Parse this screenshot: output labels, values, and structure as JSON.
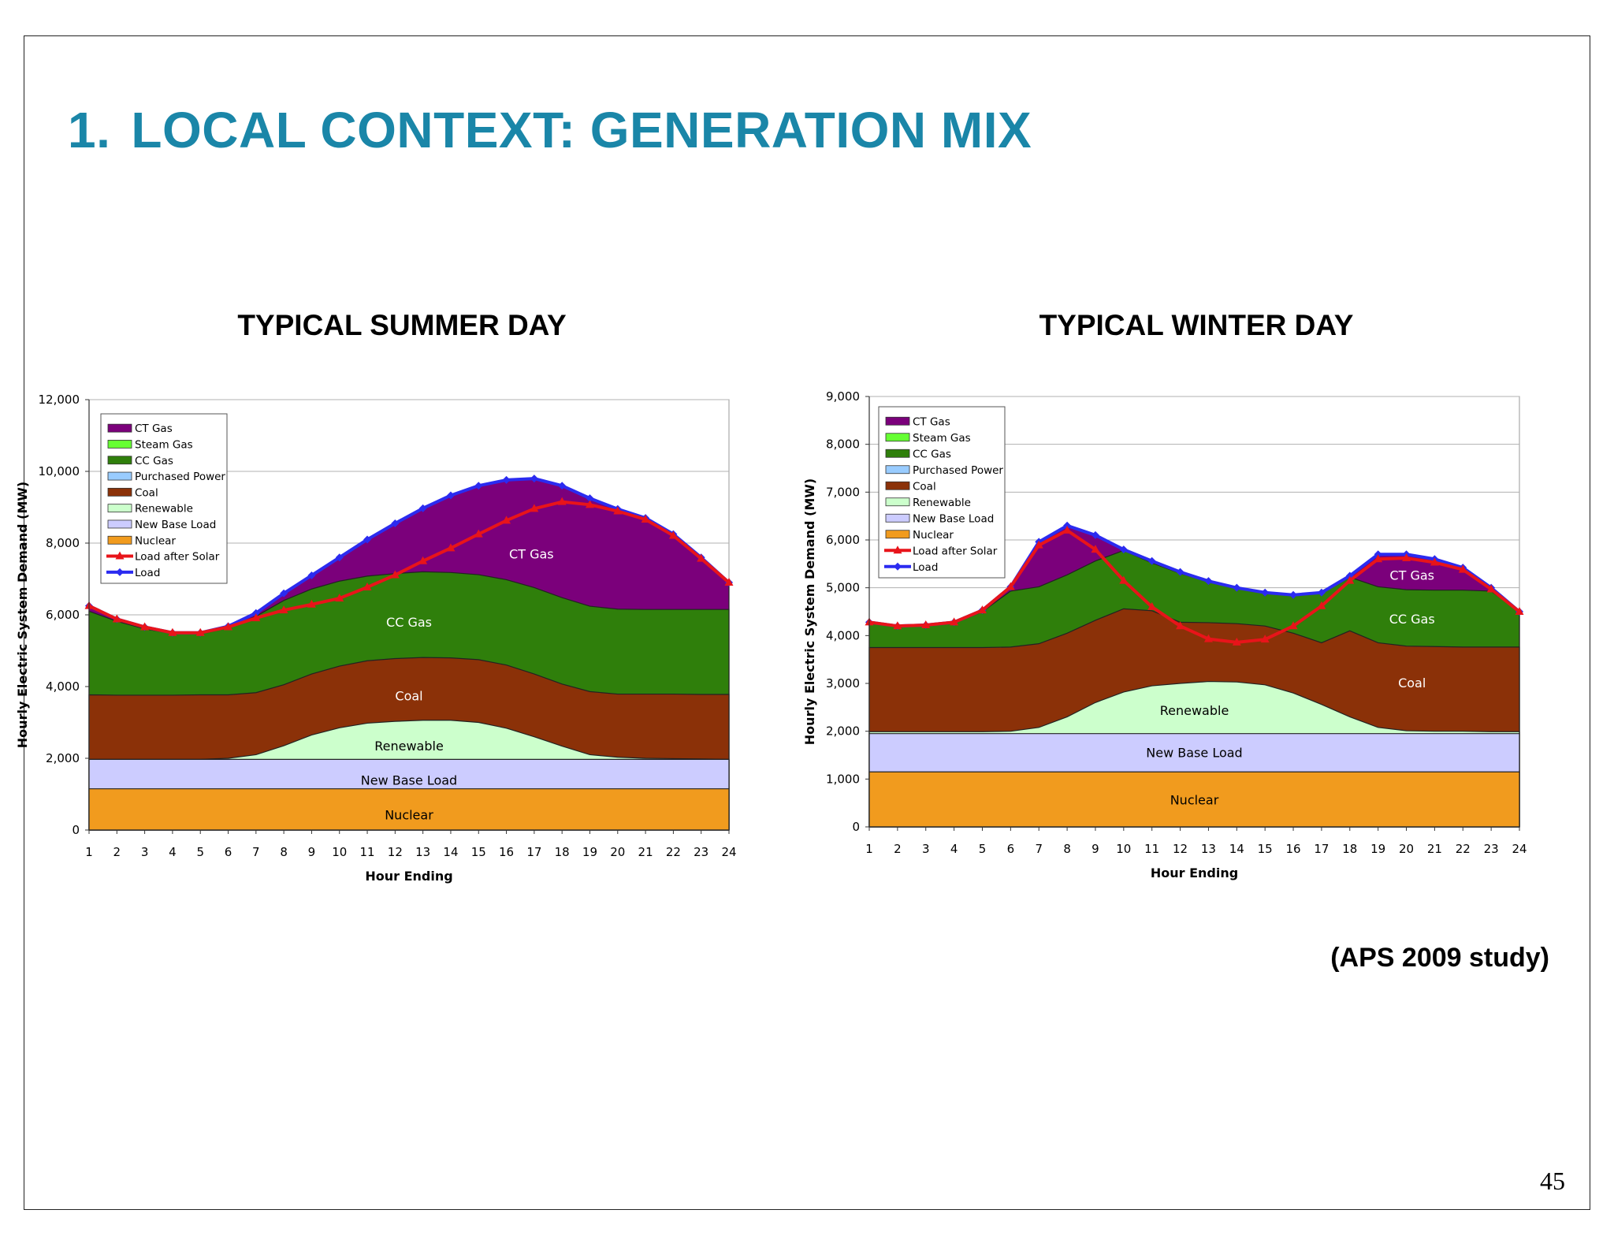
{
  "slide": {
    "number_prefix": "1.",
    "title": "LOCAL CONTEXT: GENERATION MIX",
    "citation": "(APS 2009 study)",
    "page_number": "45"
  },
  "legend_items": [
    {
      "label": "CT Gas",
      "color": "#7b007b",
      "kind": "area"
    },
    {
      "label": "Steam Gas",
      "color": "#66ff33",
      "kind": "area"
    },
    {
      "label": "CC Gas",
      "color": "#2f7f0b",
      "kind": "area"
    },
    {
      "label": "Purchased Power",
      "color": "#99ccff",
      "kind": "area"
    },
    {
      "label": "Coal",
      "color": "#8b3108",
      "kind": "area"
    },
    {
      "label": "Renewable",
      "color": "#ccffcc",
      "kind": "area"
    },
    {
      "label": "New Base Load",
      "color": "#ccccff",
      "kind": "area"
    },
    {
      "label": "Nuclear",
      "color": "#f19b1e",
      "kind": "area"
    },
    {
      "label": "Load after Solar",
      "color": "#e8141a",
      "kind": "line"
    },
    {
      "label": "Load",
      "color": "#2b2bf0",
      "kind": "line"
    }
  ],
  "chart_data": [
    {
      "type": "area",
      "title": "TYPICAL SUMMER DAY",
      "xlabel": "Hour Ending",
      "ylabel": "Hourly Electric System Demand (MW)",
      "ylim": [
        0,
        12000
      ],
      "yticks": [
        0,
        2000,
        4000,
        6000,
        8000,
        10000,
        12000
      ],
      "ytick_labels": [
        "0",
        "2,000",
        "4,000",
        "6,000",
        "8,000",
        "10,000",
        "12,000"
      ],
      "x": [
        1,
        2,
        3,
        4,
        5,
        6,
        7,
        8,
        9,
        10,
        11,
        12,
        13,
        14,
        15,
        16,
        17,
        18,
        19,
        20,
        21,
        22,
        23,
        24
      ],
      "stack_boundaries": {
        "Nuclear": [
          1150,
          1150,
          1150,
          1150,
          1150,
          1150,
          1150,
          1150,
          1150,
          1150,
          1150,
          1150,
          1150,
          1150,
          1150,
          1150,
          1150,
          1150,
          1150,
          1150,
          1150,
          1150,
          1150,
          1150
        ],
        "New Base Load": [
          1970,
          1970,
          1970,
          1970,
          1970,
          1970,
          1970,
          1970,
          1970,
          1970,
          1970,
          1970,
          1970,
          1970,
          1970,
          1970,
          1970,
          1970,
          1970,
          1970,
          1970,
          1970,
          1970,
          1970
        ],
        "Renewable": [
          1970,
          1970,
          1970,
          1970,
          1970,
          2000,
          2100,
          2350,
          2650,
          2850,
          2980,
          3030,
          3060,
          3060,
          3000,
          2840,
          2600,
          2340,
          2100,
          2030,
          2000,
          1990,
          1980,
          1970
        ],
        "Coal": [
          3770,
          3760,
          3760,
          3760,
          3770,
          3770,
          3830,
          4050,
          4350,
          4570,
          4720,
          4780,
          4810,
          4800,
          4750,
          4600,
          4350,
          4070,
          3860,
          3790,
          3790,
          3790,
          3780,
          3780
        ],
        "CC Gas": [
          6100,
          5820,
          5610,
          5480,
          5470,
          5630,
          5960,
          6400,
          6720,
          6940,
          7080,
          7150,
          7200,
          7180,
          7120,
          6980,
          6760,
          6480,
          6240,
          6160,
          6150,
          6150,
          6150,
          6150
        ],
        "CT Gas": [
          6250,
          5880,
          5660,
          5500,
          5500,
          5680,
          6050,
          6600,
          7100,
          7600,
          8100,
          8550,
          8970,
          9330,
          9600,
          9760,
          9800,
          9600,
          9250,
          8950,
          8700,
          8250,
          7600,
          6900
        ]
      },
      "series": [
        {
          "name": "Load",
          "values": [
            6250,
            5880,
            5660,
            5500,
            5500,
            5680,
            6050,
            6600,
            7100,
            7600,
            8100,
            8550,
            8970,
            9330,
            9600,
            9760,
            9800,
            9600,
            9250,
            8950,
            8700,
            8250,
            7600,
            6900
          ]
        },
        {
          "name": "Load after Solar",
          "values": [
            6250,
            5880,
            5660,
            5500,
            5500,
            5660,
            5910,
            6130,
            6290,
            6460,
            6770,
            7110,
            7500,
            7860,
            8250,
            8630,
            8960,
            9150,
            9070,
            8890,
            8660,
            8210,
            7570,
            6900
          ]
        }
      ],
      "area_labels": [
        {
          "text": "CT Gas",
          "x": 16.9,
          "y": 7700,
          "color": "#ffffff"
        },
        {
          "text": "CC Gas",
          "x": 12.5,
          "y": 5800,
          "color": "#ffffff"
        },
        {
          "text": "Coal",
          "x": 12.5,
          "y": 3750,
          "color": "#ffffff"
        },
        {
          "text": "Renewable",
          "x": 12.5,
          "y": 2350,
          "color": "#000000"
        },
        {
          "text": "New Base Load",
          "x": 12.5,
          "y": 1400,
          "color": "#000000"
        },
        {
          "text": "Nuclear",
          "x": 12.5,
          "y": 430,
          "color": "#000000"
        }
      ]
    },
    {
      "type": "area",
      "title": "TYPICAL WINTER DAY",
      "xlabel": "Hour Ending",
      "ylabel": "Hourly Electric System Demand (MW)",
      "ylim": [
        0,
        9000
      ],
      "yticks": [
        0,
        1000,
        2000,
        3000,
        4000,
        5000,
        6000,
        7000,
        8000,
        9000
      ],
      "ytick_labels": [
        "0",
        "1,000",
        "2,000",
        "3,000",
        "4,000",
        "5,000",
        "6,000",
        "7,000",
        "8,000",
        "9,000"
      ],
      "x": [
        1,
        2,
        3,
        4,
        5,
        6,
        7,
        8,
        9,
        10,
        11,
        12,
        13,
        14,
        15,
        16,
        17,
        18,
        19,
        20,
        21,
        22,
        23,
        24
      ],
      "stack_boundaries": {
        "Nuclear": [
          1150,
          1150,
          1150,
          1150,
          1150,
          1150,
          1150,
          1150,
          1150,
          1150,
          1150,
          1150,
          1150,
          1150,
          1150,
          1150,
          1150,
          1150,
          1150,
          1150,
          1150,
          1150,
          1150,
          1150
        ],
        "New Base Load": [
          1950,
          1950,
          1950,
          1950,
          1950,
          1950,
          1950,
          1950,
          1950,
          1950,
          1950,
          1950,
          1950,
          1950,
          1950,
          1950,
          1950,
          1950,
          1950,
          1950,
          1950,
          1950,
          1950,
          1950
        ],
        "Renewable": [
          1990,
          1990,
          1990,
          1990,
          1990,
          2000,
          2080,
          2300,
          2600,
          2820,
          2950,
          3000,
          3040,
          3030,
          2970,
          2800,
          2560,
          2300,
          2080,
          2010,
          2000,
          2000,
          1990,
          1990
        ],
        "Coal": [
          3750,
          3750,
          3750,
          3750,
          3750,
          3760,
          3830,
          4050,
          4320,
          4560,
          4520,
          4280,
          4270,
          4250,
          4200,
          4050,
          3850,
          4100,
          3850,
          3780,
          3770,
          3760,
          3760,
          3760
        ],
        "CC Gas": [
          4280,
          4200,
          4200,
          4260,
          4500,
          4930,
          5020,
          5270,
          5560,
          5780,
          5520,
          5300,
          5130,
          5000,
          4900,
          4850,
          4880,
          5220,
          5020,
          4960,
          4950,
          4950,
          4930,
          4500
        ],
        "CT Gas": [
          4280,
          4200,
          4220,
          4280,
          4530,
          5020,
          5960,
          6300,
          6100,
          5800,
          5560,
          5330,
          5140,
          5000,
          4900,
          4850,
          4900,
          5250,
          5700,
          5700,
          5600,
          5420,
          5000,
          4500
        ]
      },
      "series": [
        {
          "name": "Load",
          "values": [
            4280,
            4200,
            4220,
            4280,
            4530,
            5020,
            5960,
            6300,
            6100,
            5800,
            5560,
            5330,
            5140,
            5000,
            4900,
            4850,
            4900,
            5250,
            5700,
            5700,
            5600,
            5420,
            5000,
            4500
          ]
        },
        {
          "name": "Load after Solar",
          "values": [
            4280,
            4200,
            4220,
            4280,
            4530,
            5020,
            5890,
            6200,
            5800,
            5150,
            4600,
            4200,
            3930,
            3860,
            3920,
            4200,
            4620,
            5150,
            5600,
            5620,
            5530,
            5380,
            4970,
            4500
          ]
        }
      ],
      "area_labels": [
        {
          "text": "CT Gas",
          "x": 20.2,
          "y": 5270,
          "color": "#ffffff"
        },
        {
          "text": "CC Gas",
          "x": 20.2,
          "y": 4350,
          "color": "#ffffff"
        },
        {
          "text": "Coal",
          "x": 20.2,
          "y": 3020,
          "color": "#ffffff"
        },
        {
          "text": "Renewable",
          "x": 12.5,
          "y": 2440,
          "color": "#000000"
        },
        {
          "text": "New Base Load",
          "x": 12.5,
          "y": 1560,
          "color": "#000000"
        },
        {
          "text": "Nuclear",
          "x": 12.5,
          "y": 570,
          "color": "#000000"
        }
      ]
    }
  ]
}
